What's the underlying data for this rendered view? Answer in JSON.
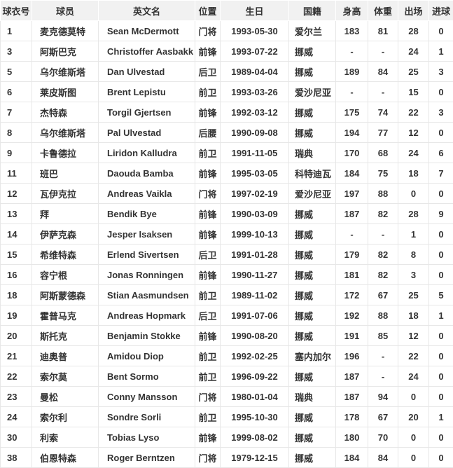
{
  "colors": {
    "header_bg": "#f1f1f1",
    "border": "#e7e7e7",
    "text": "#333333"
  },
  "table": {
    "columns": [
      {
        "key": "number",
        "label": "球衣号"
      },
      {
        "key": "player",
        "label": "球员"
      },
      {
        "key": "en_name",
        "label": "英文名"
      },
      {
        "key": "position",
        "label": "位置"
      },
      {
        "key": "birthday",
        "label": "生日"
      },
      {
        "key": "nationality",
        "label": "国籍"
      },
      {
        "key": "height",
        "label": "身高"
      },
      {
        "key": "weight",
        "label": "体重"
      },
      {
        "key": "appearances",
        "label": "出场"
      },
      {
        "key": "goals",
        "label": "进球"
      }
    ],
    "rows": [
      {
        "number": "1",
        "player": "麦克德莫特",
        "en_name": "Sean McDermott",
        "position": "门将",
        "birthday": "1993-05-30",
        "nationality": "爱尔兰",
        "height": "183",
        "weight": "81",
        "appearances": "28",
        "goals": "0"
      },
      {
        "number": "3",
        "player": "阿斯巴克",
        "en_name": "Christoffer Aasbakk",
        "position": "前锋",
        "birthday": "1993-07-22",
        "nationality": "挪威",
        "height": "-",
        "weight": "-",
        "appearances": "24",
        "goals": "1"
      },
      {
        "number": "5",
        "player": "乌尔维斯塔",
        "en_name": "Dan Ulvestad",
        "position": "后卫",
        "birthday": "1989-04-04",
        "nationality": "挪威",
        "height": "189",
        "weight": "84",
        "appearances": "25",
        "goals": "3"
      },
      {
        "number": "6",
        "player": "莱皮斯图",
        "en_name": "Brent Lepistu",
        "position": "前卫",
        "birthday": "1993-03-26",
        "nationality": "爱沙尼亚",
        "height": "-",
        "weight": "-",
        "appearances": "15",
        "goals": "0"
      },
      {
        "number": "7",
        "player": "杰特森",
        "en_name": "Torgil Gjertsen",
        "position": "前锋",
        "birthday": "1992-03-12",
        "nationality": "挪威",
        "height": "175",
        "weight": "74",
        "appearances": "22",
        "goals": "3"
      },
      {
        "number": "8",
        "player": "乌尔维斯塔",
        "en_name": "Pal Ulvestad",
        "position": "后腰",
        "birthday": "1990-09-08",
        "nationality": "挪威",
        "height": "194",
        "weight": "77",
        "appearances": "12",
        "goals": "0"
      },
      {
        "number": "9",
        "player": "卡鲁德拉",
        "en_name": "Liridon Kalludra",
        "position": "前卫",
        "birthday": "1991-11-05",
        "nationality": "瑞典",
        "height": "170",
        "weight": "68",
        "appearances": "24",
        "goals": "6"
      },
      {
        "number": "11",
        "player": "班巴",
        "en_name": "Daouda Bamba",
        "position": "前锋",
        "birthday": "1995-03-05",
        "nationality": "科特迪瓦",
        "height": "184",
        "weight": "75",
        "appearances": "18",
        "goals": "7"
      },
      {
        "number": "12",
        "player": "瓦伊克拉",
        "en_name": "Andreas Vaikla",
        "position": "门将",
        "birthday": "1997-02-19",
        "nationality": "爱沙尼亚",
        "height": "197",
        "weight": "88",
        "appearances": "0",
        "goals": "0"
      },
      {
        "number": "13",
        "player": "拜",
        "en_name": "Bendik Bye",
        "position": "前锋",
        "birthday": "1990-03-09",
        "nationality": "挪威",
        "height": "187",
        "weight": "82",
        "appearances": "28",
        "goals": "9"
      },
      {
        "number": "14",
        "player": "伊萨克森",
        "en_name": "Jesper Isaksen",
        "position": "前锋",
        "birthday": "1999-10-13",
        "nationality": "挪威",
        "height": "-",
        "weight": "-",
        "appearances": "1",
        "goals": "0"
      },
      {
        "number": "15",
        "player": "希维特森",
        "en_name": "Erlend Sivertsen",
        "position": "后卫",
        "birthday": "1991-01-28",
        "nationality": "挪威",
        "height": "179",
        "weight": "82",
        "appearances": "8",
        "goals": "0"
      },
      {
        "number": "16",
        "player": "容宁根",
        "en_name": "Jonas Ronningen",
        "position": "前锋",
        "birthday": "1990-11-27",
        "nationality": "挪威",
        "height": "181",
        "weight": "82",
        "appearances": "3",
        "goals": "0"
      },
      {
        "number": "18",
        "player": "阿斯蒙德森",
        "en_name": "Stian Aasmundsen",
        "position": "前卫",
        "birthday": "1989-11-02",
        "nationality": "挪威",
        "height": "172",
        "weight": "67",
        "appearances": "25",
        "goals": "5"
      },
      {
        "number": "19",
        "player": "霍普马克",
        "en_name": "Andreas Hopmark",
        "position": "后卫",
        "birthday": "1991-07-06",
        "nationality": "挪威",
        "height": "192",
        "weight": "88",
        "appearances": "18",
        "goals": "1"
      },
      {
        "number": "20",
        "player": "斯托克",
        "en_name": "Benjamin Stokke",
        "position": "前锋",
        "birthday": "1990-08-20",
        "nationality": "挪威",
        "height": "191",
        "weight": "85",
        "appearances": "12",
        "goals": "0"
      },
      {
        "number": "21",
        "player": "迪奥普",
        "en_name": "Amidou Diop",
        "position": "前卫",
        "birthday": "1992-02-25",
        "nationality": "塞内加尔",
        "height": "196",
        "weight": "-",
        "appearances": "22",
        "goals": "0"
      },
      {
        "number": "22",
        "player": "索尔莫",
        "en_name": "Bent Sormo",
        "position": "前卫",
        "birthday": "1996-09-22",
        "nationality": "挪威",
        "height": "187",
        "weight": "-",
        "appearances": "24",
        "goals": "0"
      },
      {
        "number": "23",
        "player": "曼松",
        "en_name": "Conny Mansson",
        "position": "门将",
        "birthday": "1980-01-04",
        "nationality": "瑞典",
        "height": "187",
        "weight": "94",
        "appearances": "0",
        "goals": "0"
      },
      {
        "number": "24",
        "player": "索尔利",
        "en_name": "Sondre Sorli",
        "position": "前卫",
        "birthday": "1995-10-30",
        "nationality": "挪威",
        "height": "178",
        "weight": "67",
        "appearances": "20",
        "goals": "1"
      },
      {
        "number": "30",
        "player": "利索",
        "en_name": "Tobias Lyso",
        "position": "前锋",
        "birthday": "1999-08-02",
        "nationality": "挪威",
        "height": "180",
        "weight": "70",
        "appearances": "0",
        "goals": "0"
      },
      {
        "number": "38",
        "player": "伯恩特森",
        "en_name": "Roger Berntzen",
        "position": "门将",
        "birthday": "1979-12-15",
        "nationality": "挪威",
        "height": "184",
        "weight": "84",
        "appearances": "0",
        "goals": "0"
      }
    ]
  }
}
